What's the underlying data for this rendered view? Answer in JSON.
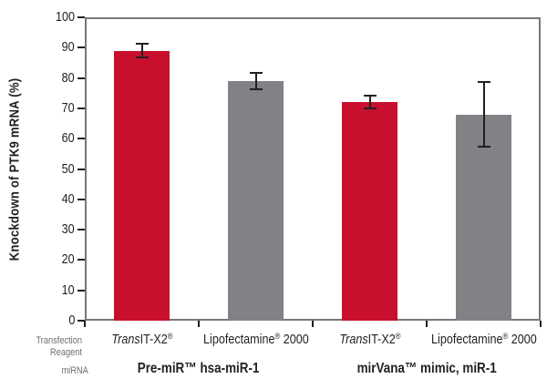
{
  "chart_data": {
    "type": "bar",
    "title": "",
    "ylabel": "Knockdown of PTK9 mRNA (%)",
    "xlabel": "",
    "ylim": [
      0,
      100
    ],
    "yticks": [
      0,
      10,
      20,
      30,
      40,
      50,
      60,
      70,
      80,
      90,
      100
    ],
    "grid": false,
    "legend": false,
    "categories": [
      "TransIT-X2® (Pre-miR™ hsa-miR-1)",
      "Lipofectamine® 2000 (Pre-miR™ hsa-miR-1)",
      "TransIT-X2® (mirVana™ mimic, miR-1)",
      "Lipofectamine® 2000 (mirVana™ mimic, miR-1)"
    ],
    "values": [
      89,
      79,
      72,
      68
    ],
    "errors": [
      2.2,
      2.7,
      2.1,
      10.7
    ],
    "bar_color_keys": [
      "red",
      "gray",
      "red",
      "gray"
    ],
    "colors": {
      "red": "#C8102E",
      "gray": "#808285",
      "axis": "#77787B",
      "tick": "#231F20",
      "muted_label": "#6D6E71"
    },
    "bars": [
      {
        "value": 89,
        "error": 2.2,
        "color": "red",
        "reagent_parts": [
          {
            "t": "Trans",
            "s": "i"
          },
          {
            "t": "IT-X2",
            "s": "n"
          },
          {
            "t": "®",
            "s": "sup"
          }
        ]
      },
      {
        "value": 79,
        "error": 2.7,
        "color": "gray",
        "reagent_parts": [
          {
            "t": "Lipofectamine",
            "s": "n"
          },
          {
            "t": "®",
            "s": "sup"
          },
          {
            "t": " 2000",
            "s": "n"
          }
        ]
      },
      {
        "value": 72,
        "error": 2.1,
        "color": "red",
        "reagent_parts": [
          {
            "t": "Trans",
            "s": "i"
          },
          {
            "t": "IT-X2",
            "s": "n"
          },
          {
            "t": "®",
            "s": "sup"
          }
        ]
      },
      {
        "value": 68,
        "error": 10.7,
        "color": "gray",
        "reagent_parts": [
          {
            "t": "Lipofectamine",
            "s": "n"
          },
          {
            "t": "®",
            "s": "sup"
          },
          {
            "t": " 2000",
            "s": "n"
          }
        ]
      }
    ],
    "groups": [
      {
        "label": "Pre-miR™ hsa-miR-1"
      },
      {
        "label": "mirVana™ mimic, miR-1"
      }
    ],
    "row_labels": {
      "reagent": "Transfection Reagent",
      "mirna": "miRNA"
    }
  }
}
